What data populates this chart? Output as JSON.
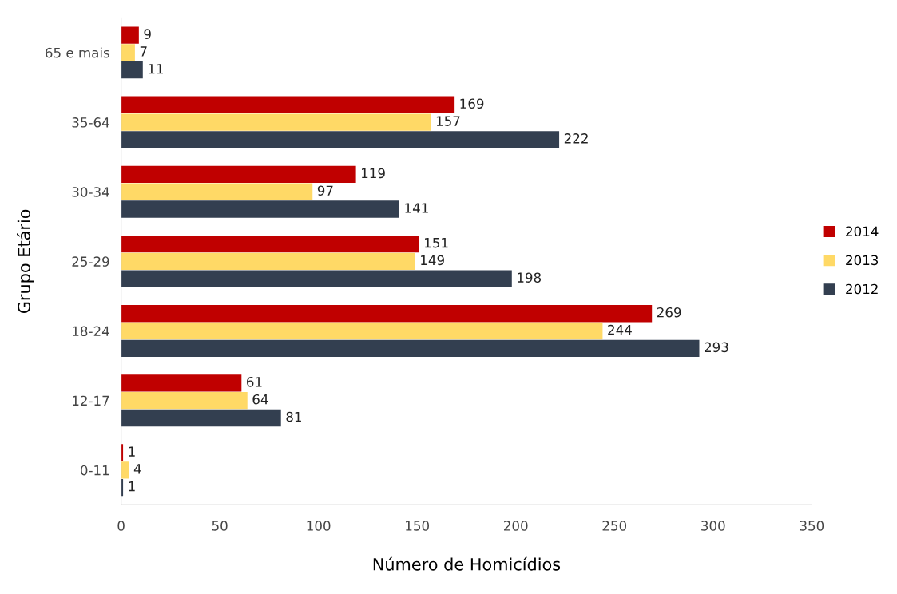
{
  "chart_data": {
    "type": "bar",
    "orientation": "horizontal",
    "xlabel": "Número de Homicídios",
    "ylabel": "Grupo Etário",
    "categories": [
      "65 e mais",
      "35-64",
      "30-34",
      "25-29",
      "18-24",
      "12-17",
      "0-11"
    ],
    "series": [
      {
        "name": "2014",
        "color": "#c00000",
        "values": [
          9,
          169,
          119,
          151,
          269,
          61,
          1
        ]
      },
      {
        "name": "2013",
        "color": "#ffd966",
        "values": [
          7,
          157,
          97,
          149,
          244,
          64,
          4
        ]
      },
      {
        "name": "2012",
        "color": "#333f50",
        "values": [
          11,
          222,
          141,
          198,
          293,
          81,
          1
        ]
      }
    ],
    "xlim": [
      0,
      350
    ],
    "xticks": [
      0,
      50,
      100,
      150,
      200,
      250,
      300,
      350
    ],
    "grid": false,
    "legend": "right",
    "data_labels": true
  }
}
